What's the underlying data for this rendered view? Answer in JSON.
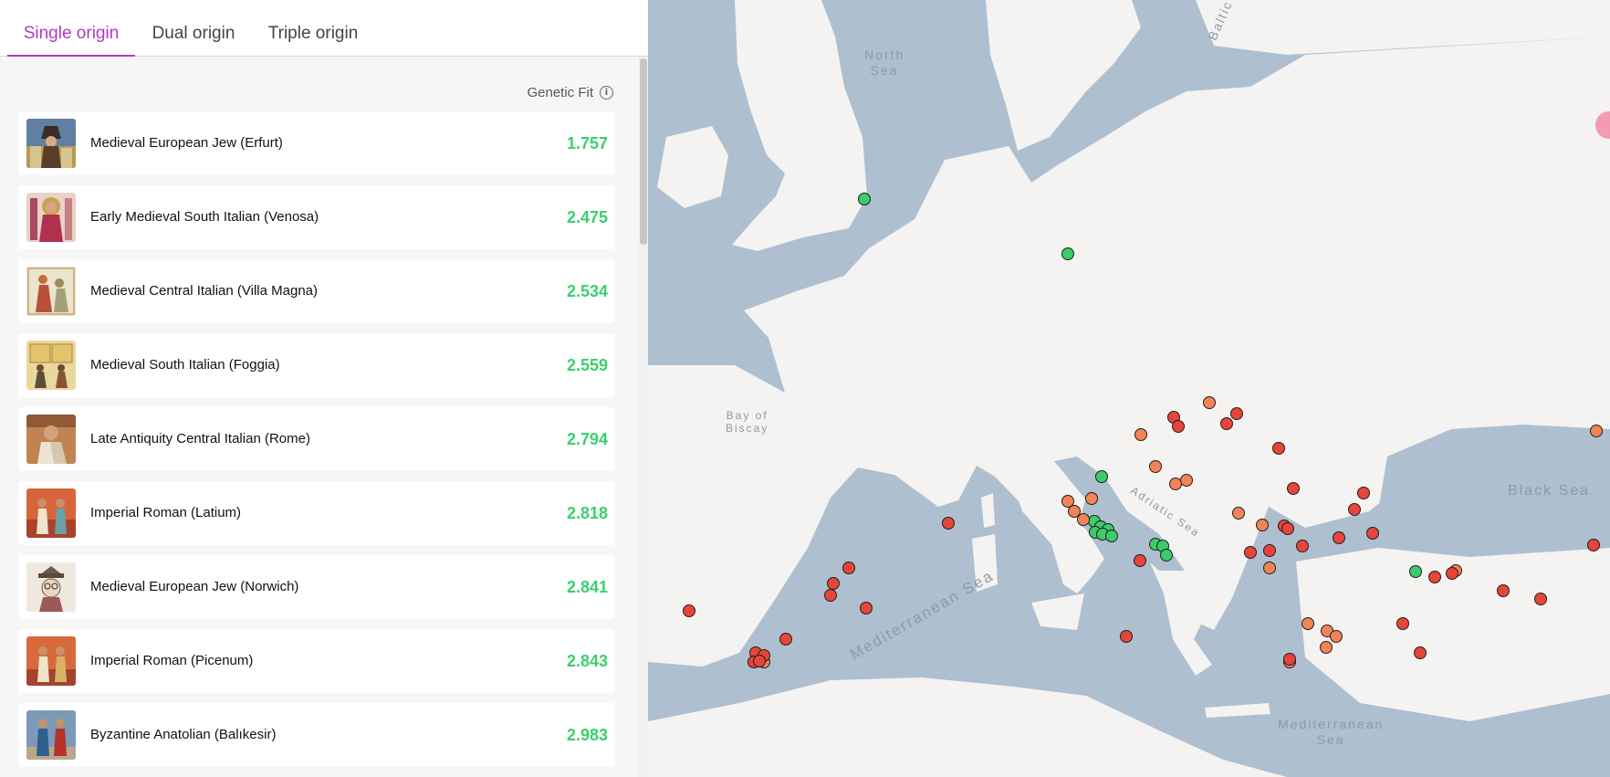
{
  "tabs": [
    {
      "label": "Single origin",
      "active": true
    },
    {
      "label": "Dual origin",
      "active": false
    },
    {
      "label": "Triple origin",
      "active": false
    }
  ],
  "genetic_fit_label": "Genetic Fit",
  "results": [
    {
      "name": "Medieval European Jew (Erfurt)",
      "score": "1.757"
    },
    {
      "name": "Early Medieval South Italian (Venosa)",
      "score": "2.475"
    },
    {
      "name": "Medieval Central Italian (Villa Magna)",
      "score": "2.534"
    },
    {
      "name": "Medieval South Italian (Foggia)",
      "score": "2.559"
    },
    {
      "name": "Late Antiquity Central Italian (Rome)",
      "score": "2.794"
    },
    {
      "name": "Imperial Roman (Latium)",
      "score": "2.818"
    },
    {
      "name": "Medieval European Jew (Norwich)",
      "score": "2.841"
    },
    {
      "name": "Imperial Roman (Picenum)",
      "score": "2.843"
    },
    {
      "name": "Byzantine Anatolian (Balıkesir)",
      "score": "2.983"
    }
  ],
  "map": {
    "labels": {
      "north_sea": "North\nSea",
      "baltic_sea": "Baltic Sea",
      "bay_of_biscay": "Bay of\nBiscay",
      "adriatic_sea": "Adriatic Sea",
      "black_sea": "Black Sea",
      "mediterranean_west": "Mediterranean Sea",
      "mediterranean_east": "Mediterranean\nSea"
    },
    "colors": {
      "good": "#3ecb6c",
      "mid": "#f28456",
      "poor": "#e8453a",
      "sea": "#aebfd0",
      "land": "#f4f3f1"
    }
  }
}
